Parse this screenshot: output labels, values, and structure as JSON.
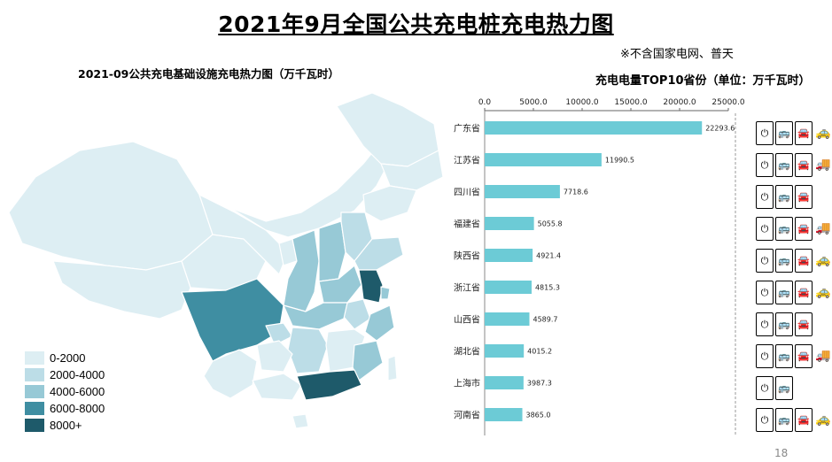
{
  "header": {
    "title": "2021年9月全国公共充电桩充电热力图",
    "note": "※不含国家电网、普天",
    "page_number": "18"
  },
  "map": {
    "title": "2021-09公共充电基础设施充电热力图（万千瓦时）",
    "legend": [
      {
        "label": "0-2000",
        "color": "#ddeef3"
      },
      {
        "label": "2000-4000",
        "color": "#bcdde7"
      },
      {
        "label": "4000-6000",
        "color": "#97c9d6"
      },
      {
        "label": "6000-8000",
        "color": "#3f8ea2"
      },
      {
        "label": "8000+",
        "color": "#1e5a6a"
      }
    ]
  },
  "chart_data": {
    "type": "bar",
    "orientation": "horizontal",
    "title": "充电电量TOP10省份（单位：万千瓦时）",
    "categories": [
      "广东省",
      "江苏省",
      "四川省",
      "福建省",
      "陕西省",
      "浙江省",
      "山西省",
      "湖北省",
      "上海市",
      "河南省"
    ],
    "values": [
      22293.6,
      11990.5,
      7718.6,
      5055.8,
      4921.4,
      4815.3,
      4589.7,
      4015.2,
      3987.3,
      3865.0
    ],
    "value_labels": [
      "22293.6",
      "11990.5",
      "7718.6",
      "5055.8",
      "4921.4",
      "4815.3",
      "4589.7",
      "4015.2",
      "3987.3",
      "3865.0"
    ],
    "xticks": [
      "0.0",
      "5000.0",
      "10000.0",
      "15000.0",
      "20000.0",
      "25000.0"
    ],
    "xlim": [
      0,
      25000
    ],
    "xlabel": "",
    "ylabel": "",
    "bar_color": "#6ccbd6",
    "grid": false
  },
  "vehicle_icons": [
    [
      "charger-icon",
      "bus-icon",
      "car-icon",
      "taxi-icon"
    ],
    [
      "charger-icon",
      "bus-icon",
      "car-icon",
      "truck-icon"
    ],
    [
      "charger-icon",
      "bus-icon",
      "car-icon"
    ],
    [
      "charger-icon",
      "bus-icon",
      "car-icon",
      "truck-icon"
    ],
    [
      "charger-icon",
      "bus-icon",
      "car-icon",
      "taxi-icon"
    ],
    [
      "charger-icon",
      "bus-icon",
      "car-icon",
      "taxi-icon"
    ],
    [
      "charger-icon",
      "bus-icon",
      "car-icon"
    ],
    [
      "charger-icon",
      "bus-icon",
      "car-icon",
      "truck-icon"
    ],
    [
      "charger-icon",
      "bus-icon"
    ],
    [
      "charger-icon",
      "bus-icon",
      "car-icon",
      "taxi-icon"
    ]
  ]
}
